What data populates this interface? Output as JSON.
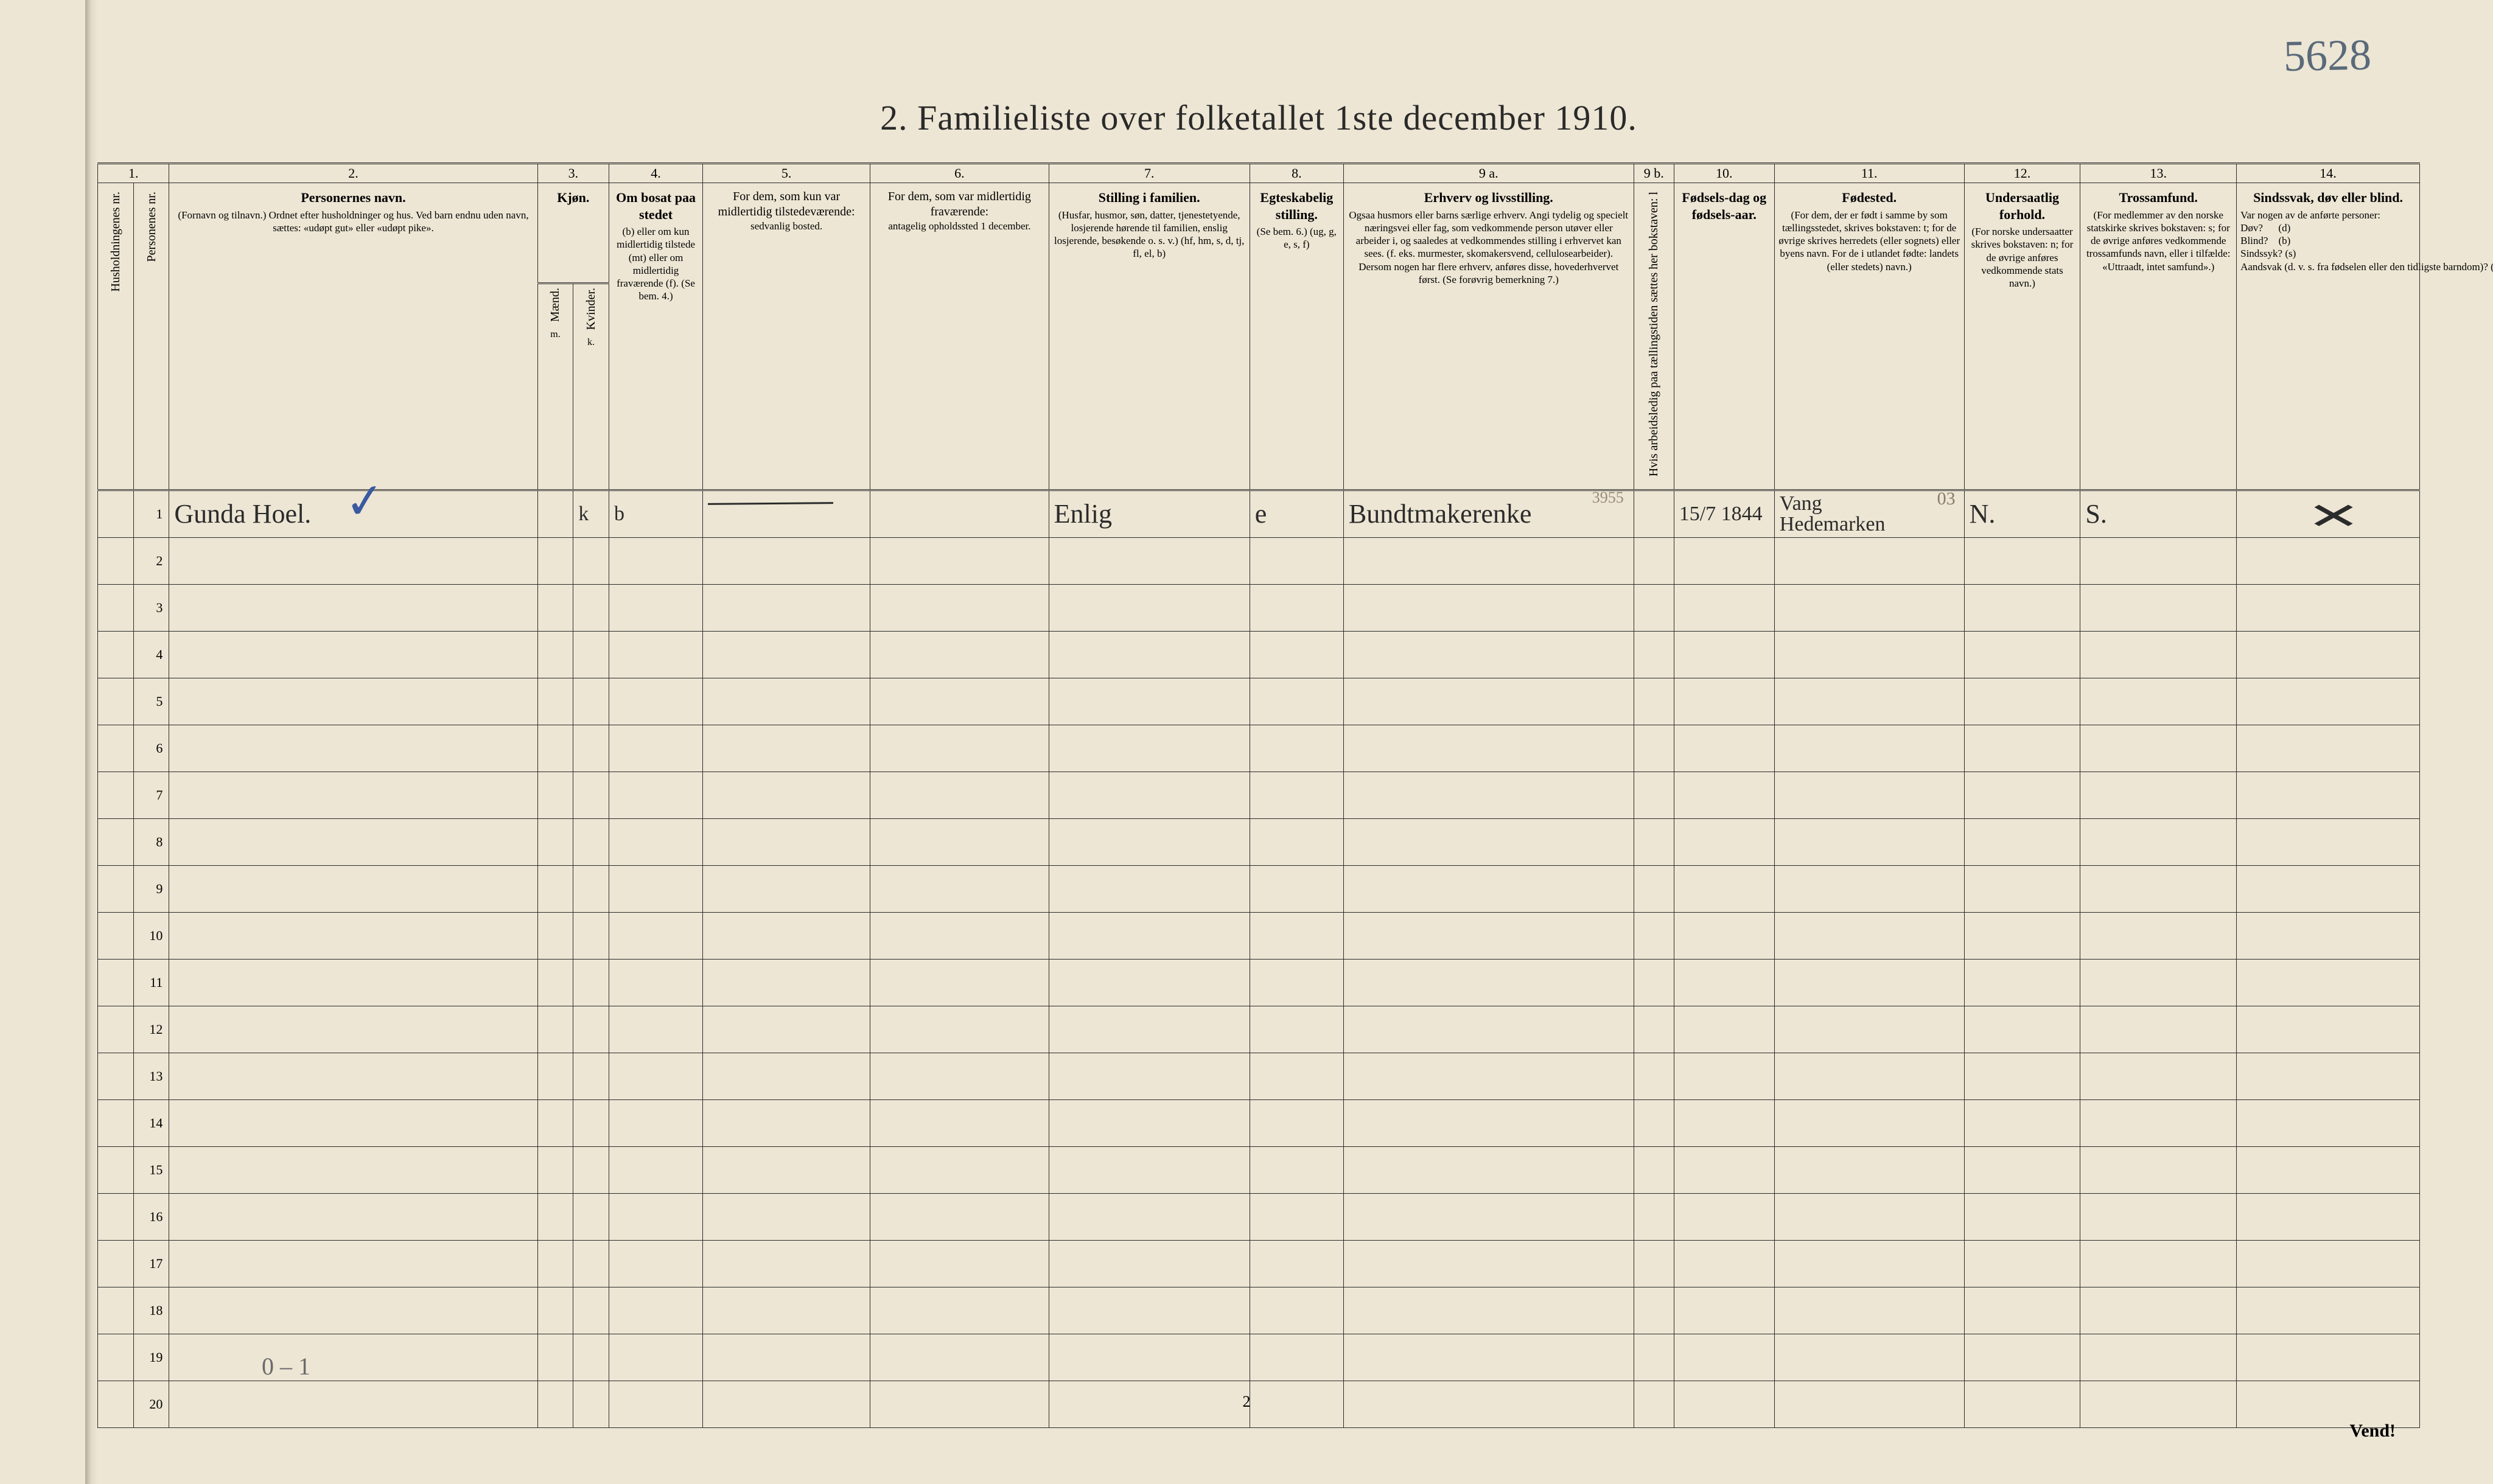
{
  "annotation_top_right": "5628",
  "title": "2.  Familieliste over folketallet 1ste december 1910.",
  "column_numbers": [
    "1.",
    "",
    "2.",
    "3.",
    "4.",
    "5.",
    "6.",
    "7.",
    "8.",
    "9 a.",
    "9 b.",
    "10.",
    "11.",
    "12.",
    "13.",
    "14."
  ],
  "headers": {
    "c1": "Husholdningenes nr.",
    "c1b": "Personenes nr.",
    "c2_title": "Personernes navn.",
    "c2_sub": "(Fornavn og tilnavn.)\nOrdnet efter husholdninger og hus.\nVed barn endnu uden navn, sættes: «udøpt gut» eller «udøpt pike».",
    "c3_title": "Kjøn.",
    "c3_m": "Mænd.",
    "c3_k": "Kvinder.",
    "c3_mk": "m.  k.",
    "c4_title": "Om bosat paa stedet",
    "c4_sub": "(b) eller om kun midlertidig tilstede (mt) eller om midlertidig fraværende (f). (Se bem. 4.)",
    "c5_title": "For dem, som kun var midlertidig tilstedeværende:",
    "c5_sub": "sedvanlig bosted.",
    "c6_title": "For dem, som var midlertidig fraværende:",
    "c6_sub": "antagelig opholdssted 1 december.",
    "c7_title": "Stilling i familien.",
    "c7_sub": "(Husfar, husmor, søn, datter, tjenestetyende, losjerende hørende til familien, enslig losjerende, besøkende o. s. v.)\n(hf, hm, s, d, tj, fl, el, b)",
    "c8_title": "Egteskabelig stilling.",
    "c8_sub": "(Se bem. 6.)\n(ug, g, e, s, f)",
    "c9a_title": "Erhverv og livsstilling.",
    "c9a_sub": "Ogsaa husmors eller barns særlige erhverv. Angi tydelig og specielt næringsvei eller fag, som vedkommende person utøver eller arbeider i, og saaledes at vedkommendes stilling i erhvervet kan sees. (f. eks. murmester, skomakersvend, cellulosearbeider). Dersom nogen har flere erhverv, anføres disse, hovederhvervet først. (Se forøvrig bemerkning 7.)",
    "c9b": "Hvis arbeidsledig paa tællingstiden sættes her bokstaven: l",
    "c10_title": "Fødsels-dag og fødsels-aar.",
    "c11_title": "Fødested.",
    "c11_sub": "(For dem, der er født i samme by som tællingsstedet, skrives bokstaven: t; for de øvrige skrives herredets (eller sognets) eller byens navn. For de i utlandet fødte: landets (eller stedets) navn.)",
    "c12_title": "Undersaatlig forhold.",
    "c12_sub": "(For norske undersaatter skrives bokstaven: n; for de øvrige anføres vedkommende stats navn.)",
    "c13_title": "Trossamfund.",
    "c13_sub": "(For medlemmer av den norske statskirke skrives bokstaven: s; for de øvrige anføres vedkommende trossamfunds navn, eller i tilfælde: «Uttraadt, intet samfund».)",
    "c14_title": "Sindssvak, døv eller blind.",
    "c14_sub": "Var nogen av de anførte personer:\nDøv?      (d)\nBlind?    (b)\nSindssyk? (s)\nAandsvak (d. v. s. fra fødselen eller den tidligste barndom)? (a)"
  },
  "row1": {
    "num": "1",
    "name": "Gunda Hoel.",
    "kjon": "k",
    "bosat": "b",
    "c5": "———",
    "c6": "",
    "stilling_fam": "Enlig",
    "egte": "e",
    "erhverv": "Bundtmakerenke",
    "erhverv_faint": "3955",
    "c9b": "",
    "fodsel": "15/7 1844",
    "fodested_line1": "Vang",
    "fodested_faint": "03",
    "fodested_line2": "Hedemarken",
    "undersaat": "N.",
    "tros": "S.",
    "sinds": "✕"
  },
  "row_numbers": [
    "1",
    "2",
    "3",
    "4",
    "5",
    "6",
    "7",
    "8",
    "9",
    "10",
    "11",
    "12",
    "13",
    "14",
    "15",
    "16",
    "17",
    "18",
    "19",
    "20"
  ],
  "margin_scribble": "0 – 1",
  "footer_pagenum": "2",
  "footer_vend": "Vend!",
  "colors": {
    "paper": "#ede6d4",
    "ink": "#2a2a2a",
    "pencil": "#5a6a7a",
    "faint": "#9a8a7a",
    "blue_tick": "#3a5aa0"
  },
  "col_widths_pct": [
    1.6,
    1.6,
    16.5,
    1.6,
    1.6,
    4.2,
    7.5,
    8.0,
    9.0,
    4.2,
    13.0,
    1.8,
    4.5,
    8.5,
    5.2,
    7.0,
    8.2
  ]
}
